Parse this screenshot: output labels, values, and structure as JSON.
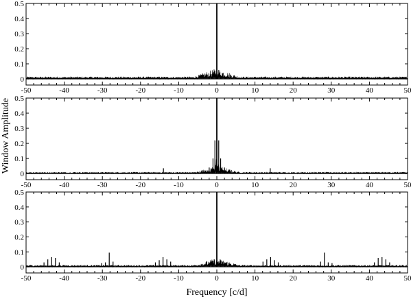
{
  "chart_data": {
    "type": "line",
    "xlabel": "Frequency [c/d]",
    "ylabel": "Window Amplitude",
    "xlim": [
      -50,
      50
    ],
    "ylim": [
      0,
      0.5
    ],
    "x_ticks": [
      -50,
      -40,
      -30,
      -20,
      -10,
      0,
      10,
      20,
      30,
      40,
      50
    ],
    "y_ticks": [
      0,
      0.1,
      0.2,
      0.3,
      0.4,
      0.5
    ],
    "x_tick_labels": [
      "-50",
      "-40",
      "-30",
      "-20",
      "-10",
      "0",
      "10",
      "20",
      "30",
      "40",
      "50"
    ],
    "y_tick_labels": [
      "0",
      "0.1",
      "0.2",
      "0.3",
      "0.4",
      "0.5"
    ],
    "grid": false,
    "legend": "none",
    "line_color": "#000000",
    "panels": [
      {
        "panel": 1,
        "central_peak": {
          "x": 0,
          "y": 0.5
        },
        "noise_level": 0.012,
        "peaks": [
          {
            "x": -0.3,
            "y": 0.03
          },
          {
            "x": 0.3,
            "y": 0.03
          },
          {
            "x": -1.0,
            "y": 0.02
          },
          {
            "x": 1.0,
            "y": 0.02
          }
        ]
      },
      {
        "panel": 2,
        "central_peak": {
          "x": 0,
          "y": 0.5
        },
        "noise_level": 0.008,
        "peaks": [
          {
            "x": -0.5,
            "y": 0.22
          },
          {
            "x": 0.5,
            "y": 0.22
          },
          {
            "x": -1.0,
            "y": 0.1
          },
          {
            "x": 1.0,
            "y": 0.1
          },
          {
            "x": -2.0,
            "y": 0.04
          },
          {
            "x": 2.0,
            "y": 0.04
          },
          {
            "x": -14.0,
            "y": 0.035
          },
          {
            "x": 14.0,
            "y": 0.035
          }
        ]
      },
      {
        "panel": 3,
        "central_peak": {
          "x": 0,
          "y": 0.5
        },
        "noise_level": 0.01,
        "peaks": [
          {
            "x": -1.0,
            "y": 0.04
          },
          {
            "x": 1.0,
            "y": 0.04
          },
          {
            "x": -2.0,
            "y": 0.03
          },
          {
            "x": 2.0,
            "y": 0.03
          },
          {
            "x": -14.1,
            "y": 0.065
          },
          {
            "x": 14.1,
            "y": 0.065
          },
          {
            "x": -13.1,
            "y": 0.05
          },
          {
            "x": 13.1,
            "y": 0.05
          },
          {
            "x": -15.1,
            "y": 0.045
          },
          {
            "x": 15.1,
            "y": 0.045
          },
          {
            "x": -12.1,
            "y": 0.035
          },
          {
            "x": 12.1,
            "y": 0.035
          },
          {
            "x": -16.1,
            "y": 0.03
          },
          {
            "x": 16.1,
            "y": 0.03
          },
          {
            "x": -28.2,
            "y": 0.095
          },
          {
            "x": 28.2,
            "y": 0.095
          },
          {
            "x": -27.2,
            "y": 0.035
          },
          {
            "x": 27.2,
            "y": 0.035
          },
          {
            "x": -29.2,
            "y": 0.03
          },
          {
            "x": 29.2,
            "y": 0.03
          },
          {
            "x": -30.2,
            "y": 0.025
          },
          {
            "x": 30.2,
            "y": 0.025
          },
          {
            "x": -42.3,
            "y": 0.06
          },
          {
            "x": 42.3,
            "y": 0.06
          },
          {
            "x": -43.3,
            "y": 0.065
          },
          {
            "x": 43.3,
            "y": 0.065
          },
          {
            "x": -44.3,
            "y": 0.05
          },
          {
            "x": 44.3,
            "y": 0.05
          },
          {
            "x": -41.3,
            "y": 0.03
          },
          {
            "x": 41.3,
            "y": 0.03
          },
          {
            "x": -45.3,
            "y": 0.03
          },
          {
            "x": 45.3,
            "y": 0.03
          }
        ]
      }
    ]
  }
}
